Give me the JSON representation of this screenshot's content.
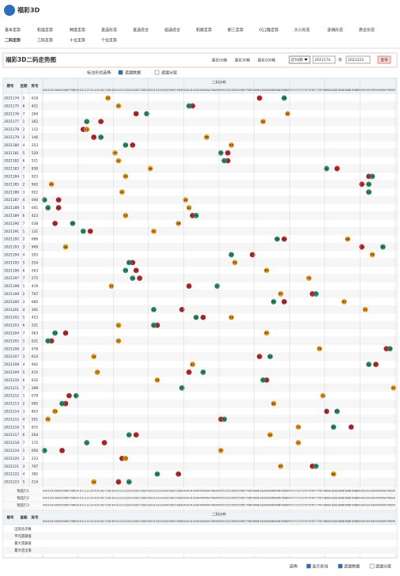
{
  "logo": "福彩3D",
  "nav": [
    [
      "基本走势",
      "和值走势",
      "跨度走势",
      "直选形态",
      "直选综合",
      "组选综合",
      "和尾走势",
      "断三走势",
      "012路走势",
      "大小形态",
      "奇偶形态",
      "质合形态"
    ],
    [
      "二码走势",
      "三码走势",
      "十位走势",
      "个位走势"
    ]
  ],
  "title": "福彩3D二码走势图",
  "quick": [
    "最近50期",
    "最近30期",
    "最近100期"
  ],
  "select": "近50期",
  "from": "2021174",
  "to_label": "到",
  "to": "2021223",
  "query": "查询",
  "options": {
    "label": "标注形式选择:",
    "items": [
      {
        "text": "遗漏数据",
        "checked": true
      },
      {
        "text": "遗漏分层",
        "checked": false
      }
    ]
  },
  "table": {
    "headers": [
      "期号",
      "星期",
      "奖号"
    ],
    "group": "二码分布",
    "columns": [
      "00",
      "01",
      "02",
      "03",
      "04",
      "05",
      "06",
      "07",
      "08",
      "09",
      "10",
      "11",
      "12",
      "13",
      "14",
      "15",
      "16",
      "17",
      "18",
      "19",
      "20",
      "21",
      "22",
      "23",
      "24",
      "25",
      "26",
      "27",
      "28",
      "29",
      "30",
      "31",
      "32",
      "33",
      "34",
      "35",
      "36",
      "37",
      "38",
      "39",
      "40",
      "41",
      "42",
      "43",
      "44",
      "45",
      "46",
      "47",
      "48",
      "49",
      "50",
      "51",
      "52",
      "53",
      "54",
      "55",
      "56",
      "57",
      "58",
      "59",
      "60",
      "61",
      "62",
      "63",
      "64",
      "65",
      "66",
      "67",
      "68",
      "69",
      "70",
      "71",
      "72",
      "73",
      "74",
      "75",
      "76",
      "77",
      "78",
      "79",
      "80",
      "81",
      "82",
      "83",
      "84",
      "85",
      "86",
      "87",
      "88",
      "89",
      "90",
      "91",
      "92",
      "93",
      "94",
      "95",
      "96",
      "97",
      "98",
      "99"
    ],
    "rows": [
      {
        "issue": "2021174",
        "week": "5",
        "draw": "618",
        "hits": [
          "61",
          "68",
          "18"
        ]
      },
      {
        "issue": "2021175",
        "week": "6",
        "draw": "421",
        "hits": [
          "42",
          "41",
          "21"
        ]
      },
      {
        "issue": "2021176",
        "week": "7",
        "draw": "269",
        "hits": [
          "26",
          "29",
          "69"
        ]
      },
      {
        "issue": "2021177",
        "week": "1",
        "draw": "162",
        "hits": [
          "16",
          "12",
          "62"
        ]
      },
      {
        "issue": "2021178",
        "week": "2",
        "draw": "112",
        "hits": [
          "11",
          "12",
          "12"
        ]
      },
      {
        "issue": "2021179",
        "week": "3",
        "draw": "146",
        "hits": [
          "14",
          "16",
          "46"
        ]
      },
      {
        "issue": "2021180",
        "week": "4",
        "draw": "253",
        "hits": [
          "25",
          "23",
          "53"
        ]
      },
      {
        "issue": "2021181",
        "week": "5",
        "draw": "520",
        "hits": [
          "52",
          "50",
          "20"
        ]
      },
      {
        "issue": "2021182",
        "week": "6",
        "draw": "521",
        "hits": [
          "52",
          "51",
          "21"
        ]
      },
      {
        "issue": "2021183",
        "week": "7",
        "draw": "830",
        "hits": [
          "83",
          "80",
          "30"
        ]
      },
      {
        "issue": "2021184",
        "week": "1",
        "draw": "923",
        "hits": [
          "92",
          "93",
          "23"
        ]
      },
      {
        "issue": "2021185",
        "week": "2",
        "draw": "902",
        "hits": [
          "90",
          "92",
          "02"
        ]
      },
      {
        "issue": "2021186",
        "week": "3",
        "draw": "922",
        "hits": [
          "92",
          "92",
          "22"
        ]
      },
      {
        "issue": "2021187",
        "week": "4",
        "draw": "040",
        "hits": [
          "04",
          "00",
          "40"
        ]
      },
      {
        "issue": "2021188",
        "week": "5",
        "draw": "041",
        "hits": [
          "04",
          "01",
          "41"
        ]
      },
      {
        "issue": "2021189",
        "week": "6",
        "draw": "423",
        "hits": [
          "42",
          "43",
          "23"
        ]
      },
      {
        "issue": "2021190",
        "week": "7",
        "draw": "038",
        "hits": [
          "03",
          "08",
          "38"
        ]
      },
      {
        "issue": "2021191",
        "week": "1",
        "draw": "131",
        "hits": [
          "13",
          "11",
          "31"
        ]
      },
      {
        "issue": "2021192",
        "week": "2",
        "draw": "686",
        "hits": [
          "68",
          "66",
          "86"
        ]
      },
      {
        "issue": "2021193",
        "week": "3",
        "draw": "906",
        "hits": [
          "90",
          "96",
          "06"
        ]
      },
      {
        "issue": "2021194",
        "week": "4",
        "draw": "593",
        "hits": [
          "59",
          "53",
          "93"
        ]
      },
      {
        "issue": "2021195",
        "week": "5",
        "draw": "254",
        "hits": [
          "25",
          "24",
          "54"
        ]
      },
      {
        "issue": "2021196",
        "week": "6",
        "draw": "263",
        "hits": [
          "26",
          "23",
          "63"
        ]
      },
      {
        "issue": "2021197",
        "week": "7",
        "draw": "275",
        "hits": [
          "27",
          "25",
          "75"
        ]
      },
      {
        "issue": "2021198",
        "week": "1",
        "draw": "419",
        "hits": [
          "41",
          "49",
          "19"
        ]
      },
      {
        "issue": "2021199",
        "week": "2",
        "draw": "767",
        "hits": [
          "76",
          "77",
          "67"
        ]
      },
      {
        "issue": "2021200",
        "week": "3",
        "draw": "685",
        "hits": [
          "68",
          "65",
          "85"
        ]
      },
      {
        "issue": "2021201",
        "week": "4",
        "draw": "391",
        "hits": [
          "39",
          "31",
          "91"
        ]
      },
      {
        "issue": "2021202",
        "week": "5",
        "draw": "453",
        "hits": [
          "45",
          "43",
          "53"
        ]
      },
      {
        "issue": "2021203",
        "week": "6",
        "draw": "321",
        "hits": [
          "32",
          "31",
          "21"
        ]
      },
      {
        "issue": "2021204",
        "week": "7",
        "draw": "063",
        "hits": [
          "06",
          "03",
          "63"
        ]
      },
      {
        "issue": "2021205",
        "week": "1",
        "draw": "021",
        "hits": [
          "02",
          "01",
          "21"
        ]
      },
      {
        "issue": "2021206",
        "week": "2",
        "draw": "978",
        "hits": [
          "97",
          "98",
          "78"
        ]
      },
      {
        "issue": "2021207",
        "week": "3",
        "draw": "614",
        "hits": [
          "61",
          "64",
          "14"
        ]
      },
      {
        "issue": "2021208",
        "week": "4",
        "draw": "942",
        "hits": [
          "94",
          "92",
          "42"
        ]
      },
      {
        "issue": "2021209",
        "week": "5",
        "draw": "415",
        "hits": [
          "41",
          "45",
          "15"
        ]
      },
      {
        "issue": "2021210",
        "week": "6",
        "draw": "632",
        "hits": [
          "63",
          "62",
          "32"
        ]
      },
      {
        "issue": "2021211",
        "week": "7",
        "draw": "399",
        "hits": [
          "39",
          "39",
          "99"
        ]
      },
      {
        "issue": "2021212",
        "week": "1",
        "draw": "079",
        "hits": [
          "07",
          "09",
          "79"
        ]
      },
      {
        "issue": "2021213",
        "week": "2",
        "draw": "065",
        "hits": [
          "06",
          "05",
          "65"
        ]
      },
      {
        "issue": "2021214",
        "week": "3",
        "draw": "803",
        "hits": [
          "80",
          "83",
          "03"
        ]
      },
      {
        "issue": "2021215",
        "week": "4",
        "draw": "501",
        "hits": [
          "50",
          "51",
          "01"
        ]
      },
      {
        "issue": "2021216",
        "week": "5",
        "draw": "872",
        "hits": [
          "87",
          "82",
          "72"
        ]
      },
      {
        "issue": "2021217",
        "week": "6",
        "draw": "264",
        "hits": [
          "26",
          "24",
          "64"
        ]
      },
      {
        "issue": "2021218",
        "week": "7",
        "draw": "172",
        "hits": [
          "17",
          "12",
          "72"
        ]
      },
      {
        "issue": "2021219",
        "week": "1",
        "draw": "050",
        "hits": [
          "05",
          "00",
          "50"
        ]
      },
      {
        "issue": "2021220",
        "week": "2",
        "draw": "223",
        "hits": [
          "22",
          "23",
          "23"
        ]
      },
      {
        "issue": "2021221",
        "week": "3",
        "draw": "767",
        "hits": [
          "76",
          "77",
          "67"
        ]
      },
      {
        "issue": "2021222",
        "week": "4",
        "draw": "382",
        "hits": [
          "38",
          "32",
          "82"
        ]
      },
      {
        "issue": "2021223",
        "week": "5",
        "draw": "214",
        "hits": [
          "21",
          "24",
          "14"
        ]
      }
    ],
    "preselect": [
      "预选行1",
      "预选行2",
      "预选行3"
    ],
    "stats": [
      "出现总次数",
      "平均遗漏值",
      "最大遗漏值",
      "最大连出值"
    ]
  },
  "footer": {
    "label": "选择:",
    "items": [
      {
        "text": "显示折线",
        "checked": true
      },
      {
        "text": "遗漏数据",
        "checked": true
      },
      {
        "text": "遗漏分层",
        "checked": false
      }
    ]
  }
}
